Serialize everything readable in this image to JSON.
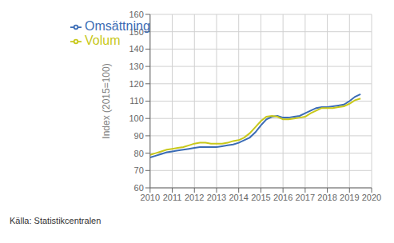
{
  "chart_data": {
    "type": "line",
    "ylabel": "Index (2015=100)",
    "annotations": [
      "Källa: Statistikcentralen"
    ],
    "x": [
      2010.0,
      2010.25,
      2010.5,
      2010.75,
      2011.0,
      2011.25,
      2011.5,
      2011.75,
      2012.0,
      2012.25,
      2012.5,
      2012.75,
      2013.0,
      2013.25,
      2013.5,
      2013.75,
      2014.0,
      2014.25,
      2014.5,
      2014.75,
      2015.0,
      2015.25,
      2015.5,
      2015.75,
      2016.0,
      2016.25,
      2016.5,
      2016.75,
      2017.0,
      2017.25,
      2017.5,
      2017.75,
      2018.0,
      2018.25,
      2018.5,
      2018.75,
      2019.0,
      2019.25,
      2019.5
    ],
    "series": [
      {
        "name": "Omsättning",
        "color": "#3B6CB5",
        "values": [
          77.5,
          78.5,
          79.5,
          80.5,
          81.0,
          81.5,
          82.0,
          82.5,
          83.0,
          83.5,
          83.5,
          83.5,
          83.5,
          84.0,
          84.5,
          85.0,
          86.0,
          87.5,
          89.0,
          92.0,
          96.0,
          99.5,
          101.0,
          101.5,
          100.5,
          100.5,
          101.0,
          101.5,
          103.0,
          104.5,
          106.0,
          106.5,
          106.5,
          107.0,
          107.5,
          108.0,
          110.0,
          112.5,
          114.0
        ]
      },
      {
        "name": "Volum",
        "color": "#C8C81A",
        "values": [
          79.0,
          80.0,
          81.0,
          82.0,
          82.5,
          83.0,
          83.5,
          84.5,
          85.5,
          86.0,
          86.0,
          85.5,
          85.5,
          85.5,
          86.0,
          87.0,
          87.5,
          89.0,
          91.5,
          95.0,
          98.5,
          101.0,
          101.5,
          101.0,
          99.5,
          99.5,
          100.0,
          100.5,
          101.0,
          103.0,
          104.5,
          106.0,
          106.0,
          106.0,
          106.5,
          107.0,
          108.5,
          110.5,
          111.5
        ]
      }
    ],
    "xlim": [
      2010,
      2020
    ],
    "ylim": [
      60,
      160
    ],
    "xticks": [
      2010,
      2011,
      2012,
      2013,
      2014,
      2015,
      2016,
      2017,
      2018,
      2019,
      2020
    ],
    "yticks": [
      60,
      70,
      80,
      90,
      100,
      110,
      120,
      130,
      140,
      150,
      160
    ],
    "grid": true,
    "legend": "upper left"
  }
}
